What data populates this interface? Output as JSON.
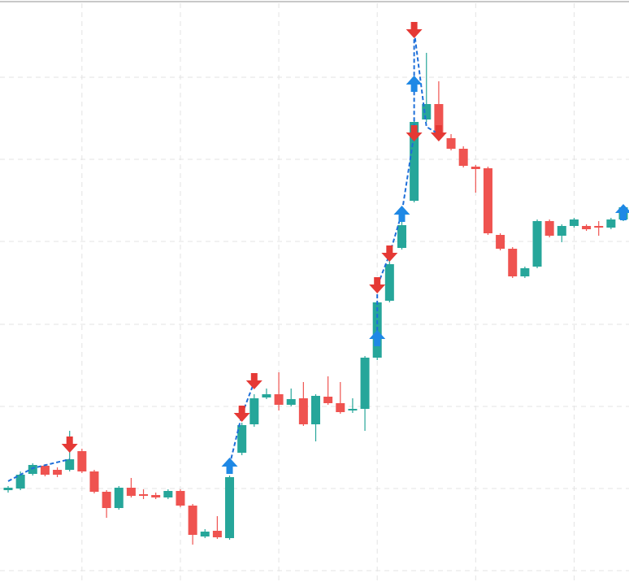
{
  "chart_data": {
    "type": "candlestick",
    "categories": [
      null,
      null,
      null,
      null,
      null,
      null,
      null,
      null,
      null,
      null,
      null,
      null,
      null,
      null,
      null,
      null,
      null,
      null,
      null,
      null,
      null,
      null,
      null,
      null,
      null,
      null,
      null,
      null,
      null,
      null,
      null,
      null,
      null,
      null,
      null,
      null,
      null,
      null,
      null,
      null,
      null,
      null,
      null,
      null,
      null,
      null,
      null,
      null,
      null,
      null,
      null
    ],
    "open": [
      113,
      115,
      133,
      143,
      138,
      138,
      161,
      136,
      111,
      91,
      116,
      108,
      107,
      104,
      112,
      94,
      56,
      63,
      54,
      159,
      194,
      227,
      231,
      218,
      226,
      194,
      228,
      220,
      211,
      213,
      276,
      346,
      411,
      469,
      569,
      588,
      546,
      533,
      511,
      509,
      427,
      410,
      376,
      388,
      444,
      426,
      438,
      438,
      438,
      436,
      446
    ],
    "close": [
      116,
      132,
      144,
      132,
      132,
      151,
      136,
      111,
      91,
      116,
      106,
      106,
      104,
      112,
      94,
      58,
      62,
      55,
      129,
      193,
      226,
      231,
      218,
      225,
      194,
      229,
      220,
      209,
      213,
      276,
      344,
      391,
      439,
      566,
      588,
      551,
      533,
      512,
      508,
      429,
      410,
      376,
      386,
      444,
      426,
      438,
      446,
      434,
      436,
      446,
      461
    ],
    "high": [
      118,
      136,
      146,
      145,
      141,
      186,
      164,
      138,
      113,
      118,
      128,
      114,
      110,
      114,
      114,
      96,
      65,
      81,
      131,
      196,
      231,
      238,
      258,
      238,
      246,
      231,
      253,
      246,
      226,
      278,
      346,
      396,
      444,
      568,
      651,
      616,
      551,
      536,
      513,
      511,
      429,
      412,
      388,
      446,
      446,
      440,
      448,
      440,
      444,
      448,
      463
    ],
    "low": [
      110,
      113,
      131,
      130,
      129,
      136,
      134,
      109,
      79,
      89,
      104,
      102,
      102,
      102,
      92,
      46,
      54,
      53,
      52,
      156,
      191,
      225,
      211,
      216,
      192,
      173,
      218,
      207,
      208,
      186,
      273,
      344,
      409,
      467,
      566,
      546,
      531,
      510,
      479,
      427,
      408,
      374,
      374,
      386,
      424,
      418,
      436,
      432,
      426,
      434,
      444
    ],
    "up_color": "#26a69a",
    "down_color": "#ef5350",
    "ylim": [
      0,
      716
    ],
    "grid_y": [
      621,
      520,
      419,
      317,
      216,
      115,
      14
    ],
    "grid_x": [
      6,
      14,
      22,
      30,
      38,
      46
    ],
    "markers": [
      {
        "at": 5,
        "value": 168,
        "side": "sell"
      },
      {
        "at": 19,
        "value": 206,
        "side": "sell"
      },
      {
        "at": 20,
        "value": 246,
        "side": "sell"
      },
      {
        "at": 30,
        "value": 364,
        "side": "sell"
      },
      {
        "at": 31,
        "value": 403,
        "side": "sell"
      },
      {
        "at": 33,
        "value": 551,
        "side": "sell"
      },
      {
        "at": 33,
        "value": 678,
        "side": "sell"
      },
      {
        "at": 35,
        "value": 551,
        "side": "sell"
      },
      {
        "at": 18,
        "value": 144,
        "side": "buy"
      },
      {
        "at": 30,
        "value": 301,
        "side": "buy"
      },
      {
        "at": 32,
        "value": 454,
        "side": "buy"
      },
      {
        "at": 33,
        "value": 614,
        "side": "buy"
      },
      {
        "at": 50,
        "value": 456,
        "side": "buy"
      }
    ],
    "sell_color": "#e53935",
    "buy_color": "#1e88e5",
    "signal_line": {
      "color": "#1e6fd9",
      "points": [
        {
          "at": 0,
          "value": 124
        },
        {
          "at": 2,
          "value": 140
        },
        {
          "at": 5,
          "value": 151
        },
        null,
        {
          "at": 18,
          "value": 144
        },
        {
          "at": 19,
          "value": 206
        },
        {
          "at": 20,
          "value": 246
        },
        null,
        {
          "at": 30,
          "value": 301
        },
        {
          "at": 30,
          "value": 364
        },
        {
          "at": 31,
          "value": 403
        },
        {
          "at": 32,
          "value": 454
        },
        {
          "at": 33,
          "value": 551
        },
        {
          "at": 33,
          "value": 614
        },
        {
          "at": 33,
          "value": 678
        },
        {
          "at": 34,
          "value": 560
        },
        {
          "at": 35,
          "value": 551
        }
      ]
    }
  }
}
